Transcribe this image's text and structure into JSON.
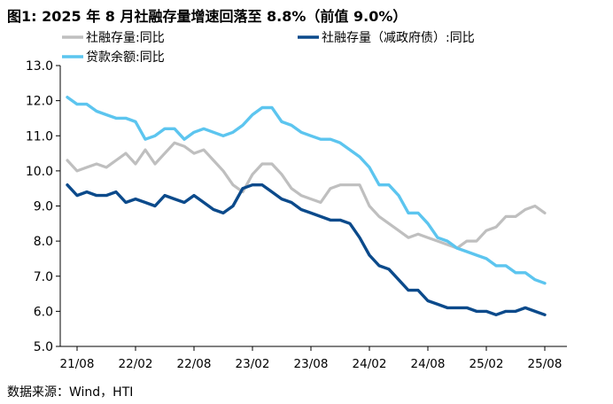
{
  "title": "图1:  2025 年 8 月社融存量增速回落至 8.8%（前值 9.0%）",
  "source": "数据来源：Wind，HTI",
  "colors": {
    "gray": "#bfbfbf",
    "navy": "#0b4a8b",
    "lightblue": "#5cc5ef"
  },
  "chart_data": {
    "type": "line",
    "title": "图1:  2025 年 8 月社融存量增速回落至 8.8%（前值 9.0%）",
    "xlabel": "",
    "ylabel": "",
    "ylim": [
      5.0,
      13.0
    ],
    "yticks": [
      "13.0",
      "12.0",
      "11.0",
      "10.0",
      "9.0",
      "8.0",
      "7.0",
      "6.0",
      "5.0"
    ],
    "yticks_values": [
      13,
      12,
      11,
      10,
      9,
      8,
      7,
      6,
      5
    ],
    "x": [
      "21/07",
      "21/08",
      "21/09",
      "21/10",
      "21/11",
      "21/12",
      "22/01",
      "22/02",
      "22/03",
      "22/04",
      "22/05",
      "22/06",
      "22/07",
      "22/08",
      "22/09",
      "22/10",
      "22/11",
      "22/12",
      "23/01",
      "23/02",
      "23/03",
      "23/04",
      "23/05",
      "23/06",
      "23/07",
      "23/08",
      "23/09",
      "23/10",
      "23/11",
      "23/12",
      "24/01",
      "24/02",
      "24/03",
      "24/04",
      "24/05",
      "24/06",
      "24/07",
      "24/08",
      "24/09",
      "24/10",
      "24/11",
      "24/12",
      "25/01",
      "25/02",
      "25/03",
      "25/04",
      "25/05",
      "25/06",
      "25/07",
      "25/08"
    ],
    "xticks": [
      "21/08",
      "22/02",
      "22/08",
      "23/02",
      "23/08",
      "24/02",
      "24/08",
      "25/02",
      "25/08"
    ],
    "grid": false,
    "legend_position": "top",
    "series": [
      {
        "name": "社融存量:同比",
        "color": "#bfbfbf",
        "values": [
          10.3,
          10.0,
          10.1,
          10.2,
          10.1,
          10.3,
          10.5,
          10.2,
          10.6,
          10.2,
          10.5,
          10.8,
          10.7,
          10.5,
          10.6,
          10.3,
          10.0,
          9.6,
          9.4,
          9.9,
          10.2,
          10.2,
          9.9,
          9.5,
          9.3,
          9.2,
          9.1,
          9.5,
          9.6,
          9.6,
          9.6,
          9.0,
          8.7,
          8.5,
          8.3,
          8.1,
          8.2,
          8.1,
          8.0,
          7.9,
          7.8,
          8.0,
          8.0,
          8.3,
          8.4,
          8.7,
          8.7,
          8.9,
          9.0,
          8.8
        ]
      },
      {
        "name": "社融存量（减政府债）:同比",
        "color": "#0b4a8b",
        "values": [
          9.6,
          9.3,
          9.4,
          9.3,
          9.3,
          9.4,
          9.1,
          9.2,
          9.1,
          9.0,
          9.3,
          9.2,
          9.1,
          9.3,
          9.1,
          8.9,
          8.8,
          9.0,
          9.5,
          9.6,
          9.6,
          9.4,
          9.2,
          9.1,
          8.9,
          8.8,
          8.7,
          8.6,
          8.6,
          8.5,
          8.1,
          7.6,
          7.3,
          7.2,
          6.9,
          6.6,
          6.6,
          6.3,
          6.2,
          6.1,
          6.1,
          6.1,
          6.0,
          6.0,
          5.9,
          6.0,
          6.0,
          6.1,
          6.0,
          5.9
        ]
      },
      {
        "name": "贷款余额:同比",
        "color": "#5cc5ef",
        "values": [
          12.1,
          11.9,
          11.9,
          11.7,
          11.6,
          11.5,
          11.5,
          11.4,
          10.9,
          11.0,
          11.2,
          11.2,
          10.9,
          11.1,
          11.2,
          11.1,
          11.0,
          11.1,
          11.3,
          11.6,
          11.8,
          11.8,
          11.4,
          11.3,
          11.1,
          11.0,
          10.9,
          10.9,
          10.8,
          10.6,
          10.4,
          10.1,
          9.6,
          9.6,
          9.3,
          8.8,
          8.8,
          8.5,
          8.1,
          8.0,
          7.8,
          7.7,
          7.6,
          7.5,
          7.3,
          7.3,
          7.1,
          7.1,
          6.9,
          6.8
        ]
      }
    ]
  }
}
